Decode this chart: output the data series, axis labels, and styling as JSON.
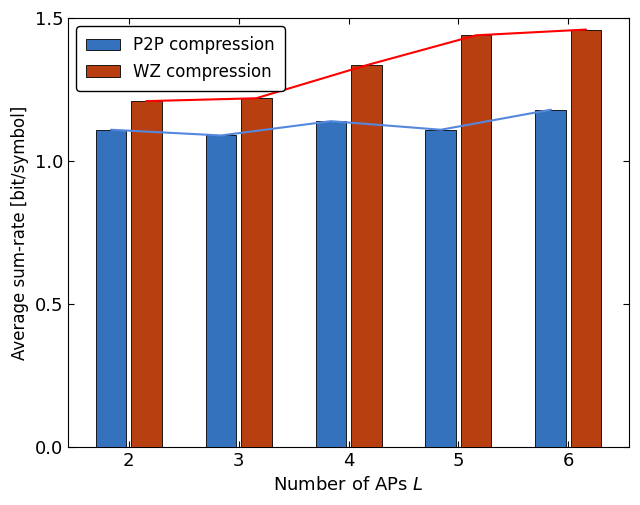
{
  "categories": [
    2,
    3,
    4,
    5,
    6
  ],
  "p2p_values": [
    1.11,
    1.09,
    1.14,
    1.11,
    1.18
  ],
  "wz_values": [
    1.21,
    1.22,
    1.335,
    1.44,
    1.46
  ],
  "p2p_color": "#3472BE",
  "wz_color": "#B84010",
  "p2p_line_color": "#5588DD",
  "wz_line_color": "#FF0000",
  "bar_width": 0.28,
  "bar_gap": 0.04,
  "ylim": [
    0,
    1.5
  ],
  "yticks": [
    0,
    0.5,
    1.0,
    1.5
  ],
  "xlabel": "Number of APs $L$",
  "ylabel": "Average sum-rate [bit/symbol]",
  "legend_p2p": "P2P compression",
  "legend_wz": "WZ compression",
  "figwidth": 6.4,
  "figheight": 5.05,
  "dpi": 100
}
